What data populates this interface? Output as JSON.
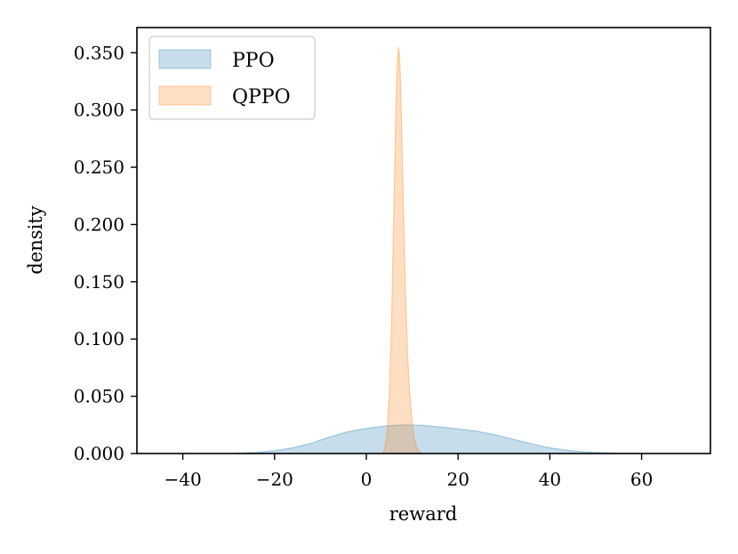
{
  "chart_data": {
    "type": "area",
    "xlabel": "reward",
    "ylabel": "density",
    "xlim": [
      -50,
      75
    ],
    "ylim": [
      0,
      0.372
    ],
    "xticks": [
      -40,
      -20,
      0,
      20,
      40,
      60
    ],
    "xtick_labels": [
      "−40",
      "−20",
      "0",
      "20",
      "40",
      "60"
    ],
    "yticks": [
      0,
      0.05,
      0.1,
      0.15,
      0.2,
      0.25,
      0.3,
      0.35
    ],
    "ytick_labels": [
      "0.000",
      "0.050",
      "0.100",
      "0.150",
      "0.200",
      "0.250",
      "0.300",
      "0.350"
    ],
    "grid": false,
    "legend_position": "top-left",
    "series": [
      {
        "name": "PPO",
        "color": "#1f77b4",
        "x": [
          -28,
          -24,
          -20,
          -16,
          -12,
          -8,
          -4,
          0,
          4,
          8,
          12,
          16,
          20,
          24,
          28,
          32,
          36,
          40,
          44,
          48,
          52,
          56,
          60
        ],
        "y": [
          0.0003,
          0.001,
          0.0025,
          0.005,
          0.009,
          0.0145,
          0.019,
          0.022,
          0.024,
          0.025,
          0.0247,
          0.0232,
          0.0215,
          0.0195,
          0.0165,
          0.0125,
          0.0085,
          0.005,
          0.0027,
          0.0013,
          0.0006,
          0.0002,
          0.0
        ]
      },
      {
        "name": "QPPO",
        "color": "#ff7f0e",
        "x": [
          3.5,
          4.0,
          4.5,
          5.0,
          5.5,
          6.0,
          6.5,
          6.8,
          7.0,
          7.2,
          7.5,
          8.0,
          8.5,
          9.0,
          9.5,
          10.0,
          10.5,
          11.0,
          11.5,
          12.0
        ],
        "y": [
          0.0,
          0.004,
          0.017,
          0.05,
          0.115,
          0.215,
          0.31,
          0.345,
          0.355,
          0.35,
          0.32,
          0.23,
          0.145,
          0.087,
          0.05,
          0.026,
          0.012,
          0.005,
          0.002,
          0.0
        ]
      }
    ]
  }
}
